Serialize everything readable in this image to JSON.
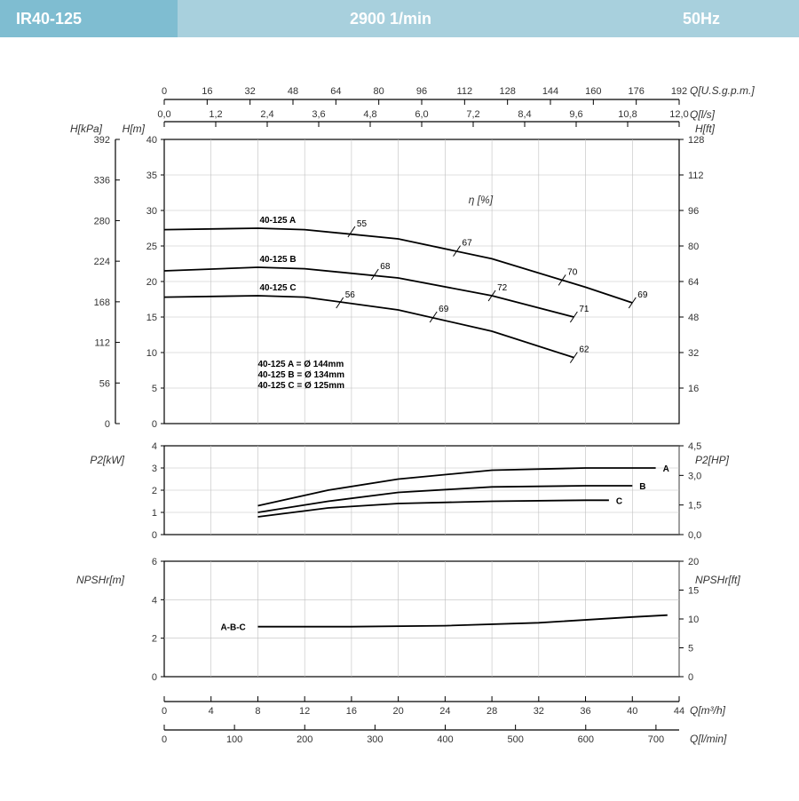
{
  "header": {
    "model": "IR40-125",
    "speed": "2900 1/min",
    "freq": "50Hz"
  },
  "colors": {
    "grid": "#bfbfbf",
    "axis": "#000",
    "curve": "#000",
    "bg": "#ffffff"
  },
  "top_axis_gpm": {
    "label": "Q[U.S.g.p.m.]",
    "ticks": [
      0,
      16,
      32,
      48,
      64,
      80,
      96,
      112,
      128,
      144,
      160,
      176,
      192
    ]
  },
  "top_axis_ls": {
    "label": "Q[l/s]",
    "ticks": [
      "0,0",
      "1,2",
      "2,4",
      "3,6",
      "4,8",
      "6,0",
      "7,2",
      "8,4",
      "9,6",
      "10,8",
      "12,0"
    ]
  },
  "bottom_axis_m3h": {
    "label": "Q[m³/h]",
    "ticks": [
      0,
      4,
      8,
      12,
      16,
      20,
      24,
      28,
      32,
      36,
      40,
      44
    ]
  },
  "bottom_axis_lmin": {
    "label": "Q[l/min]",
    "ticks": [
      0,
      100,
      200,
      300,
      400,
      500,
      600,
      700
    ]
  },
  "main_chart": {
    "left_kpa": {
      "label": "H[kPa]",
      "ticks": [
        0,
        56,
        112,
        168,
        224,
        280,
        336,
        392
      ]
    },
    "left_m": {
      "label": "H[m]",
      "ticks": [
        0,
        5,
        10,
        15,
        20,
        25,
        30,
        35,
        40
      ]
    },
    "right_ft": {
      "label": "H[ft]",
      "ticks": [
        16,
        32,
        48,
        64,
        80,
        96,
        112,
        128
      ]
    },
    "eta_label": "η  [%]",
    "x_range": [
      0,
      44
    ],
    "y_range": [
      0,
      40
    ],
    "curves": {
      "A": {
        "label": "40-125 A",
        "pts": [
          [
            0,
            27.3
          ],
          [
            8,
            27.5
          ],
          [
            12,
            27.3
          ],
          [
            20,
            26
          ],
          [
            28,
            23.2
          ],
          [
            36,
            19.2
          ],
          [
            40,
            17
          ]
        ],
        "eff": [
          [
            16,
            27,
            "55"
          ],
          [
            25,
            24.3,
            "67"
          ],
          [
            34,
            20.2,
            "70"
          ],
          [
            40,
            17,
            "69"
          ]
        ]
      },
      "B": {
        "label": "40-125 B",
        "pts": [
          [
            0,
            21.5
          ],
          [
            8,
            22
          ],
          [
            12,
            21.8
          ],
          [
            20,
            20.5
          ],
          [
            28,
            18
          ],
          [
            35,
            15
          ]
        ],
        "eff": [
          [
            18,
            21,
            "68"
          ],
          [
            28,
            18,
            "72"
          ],
          [
            35,
            15,
            "71"
          ]
        ]
      },
      "C": {
        "label": "40-125 C",
        "pts": [
          [
            0,
            17.8
          ],
          [
            8,
            18
          ],
          [
            12,
            17.8
          ],
          [
            20,
            16
          ],
          [
            28,
            13
          ],
          [
            35,
            9.3
          ]
        ],
        "eff": [
          [
            15,
            17,
            "56"
          ],
          [
            23,
            15,
            "69"
          ],
          [
            35,
            9.3,
            "62"
          ]
        ]
      }
    },
    "legend": [
      "40-125 A = Ø 144mm",
      "40-125 B = Ø 134mm",
      "40-125 C = Ø 125mm"
    ]
  },
  "power_chart": {
    "left": {
      "label": "P2[kW]",
      "ticks": [
        0,
        1,
        2,
        3,
        4
      ]
    },
    "right": {
      "label": "P2[HP]",
      "ticks": [
        "0,0",
        "1,5",
        "3,0",
        "4,5"
      ]
    },
    "x_range": [
      0,
      44
    ],
    "y_range": [
      0,
      4
    ],
    "curves": {
      "A": {
        "label": "A",
        "pts": [
          [
            8,
            1.3
          ],
          [
            14,
            2.0
          ],
          [
            20,
            2.5
          ],
          [
            28,
            2.9
          ],
          [
            36,
            3.0
          ],
          [
            42,
            3.0
          ]
        ]
      },
      "B": {
        "label": "B",
        "pts": [
          [
            8,
            1.0
          ],
          [
            14,
            1.5
          ],
          [
            20,
            1.9
          ],
          [
            28,
            2.15
          ],
          [
            36,
            2.2
          ],
          [
            40,
            2.2
          ]
        ]
      },
      "C": {
        "label": "C",
        "pts": [
          [
            8,
            0.8
          ],
          [
            14,
            1.2
          ],
          [
            20,
            1.4
          ],
          [
            28,
            1.5
          ],
          [
            36,
            1.55
          ],
          [
            38,
            1.55
          ]
        ]
      }
    }
  },
  "npsh_chart": {
    "left": {
      "label": "NPSHr[m]",
      "ticks": [
        0,
        2,
        4,
        6
      ]
    },
    "right": {
      "label": "NPSHr[ft]",
      "ticks": [
        0,
        5,
        10,
        15,
        20
      ]
    },
    "x_range": [
      0,
      44
    ],
    "y_range": [
      0,
      6
    ],
    "curve": {
      "label": "A-B-C",
      "pts": [
        [
          8,
          2.6
        ],
        [
          16,
          2.6
        ],
        [
          24,
          2.65
        ],
        [
          32,
          2.8
        ],
        [
          40,
          3.1
        ],
        [
          43,
          3.2
        ]
      ]
    }
  }
}
